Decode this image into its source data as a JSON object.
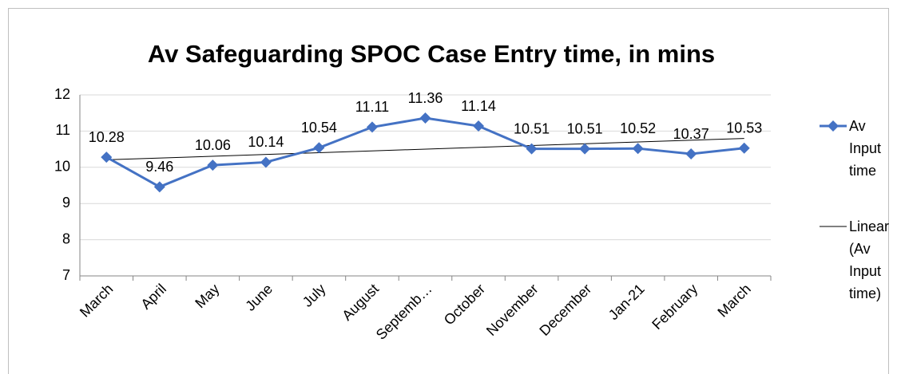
{
  "chart_data": {
    "type": "line",
    "title": "Av Safeguarding SPOC Case Entry time, in mins",
    "categories": [
      "March",
      "April",
      "May",
      "June",
      "July",
      "August",
      "Septemb…",
      "October",
      "November",
      "December",
      "Jan-21",
      "February",
      "March"
    ],
    "series": [
      {
        "name": "Av Input time",
        "color": "#4472c4",
        "values": [
          10.28,
          9.46,
          10.06,
          10.14,
          10.54,
          11.11,
          11.36,
          11.14,
          10.51,
          10.51,
          10.52,
          10.37,
          10.53
        ]
      }
    ],
    "trendline": {
      "name": "Linear (Av Input time)",
      "type": "linear",
      "color": "#000000"
    },
    "ylim": [
      7,
      12
    ],
    "yticks": [
      7,
      8,
      9,
      10,
      11,
      12
    ],
    "grid": true,
    "legend": "right"
  }
}
